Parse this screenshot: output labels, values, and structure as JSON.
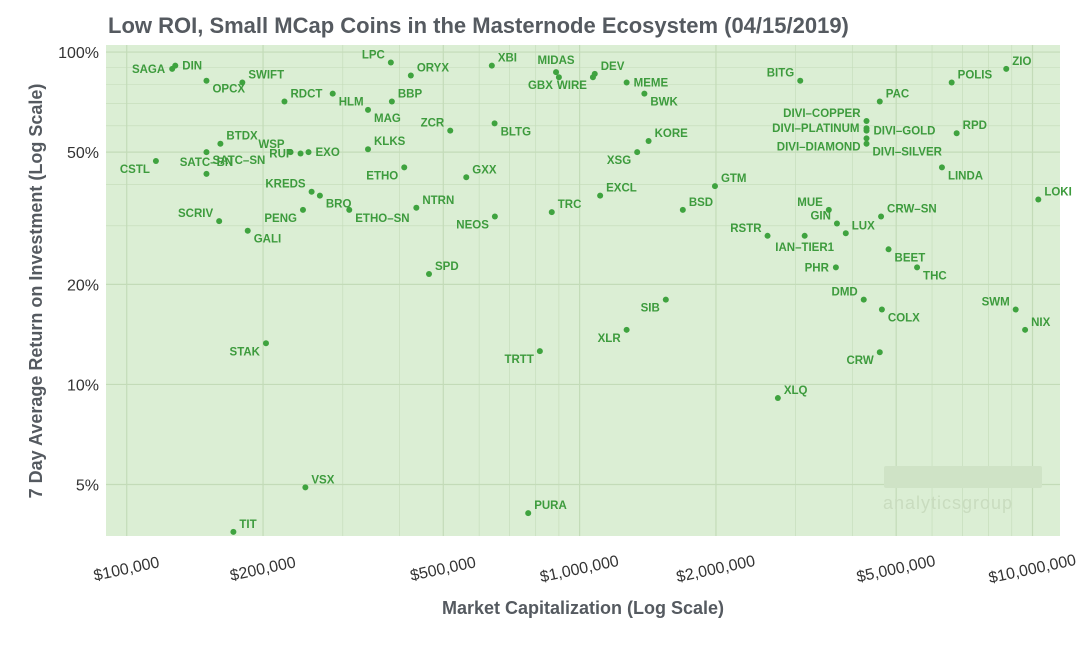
{
  "chart_data": {
    "type": "scatter",
    "title": "Low ROI, Small MCap Coins in the Masternode Ecosystem (04/15/2019)",
    "xlabel": "Market Capitalization (Log Scale)",
    "ylabel": "7 Day Average Return on Investment (Log Scale)",
    "x_scale": "log",
    "y_scale": "log",
    "xlim": [
      90000,
      11500000
    ],
    "ylim": [
      3.5,
      105
    ],
    "x_ticks": [
      {
        "value": 100000,
        "label": "$100,000"
      },
      {
        "value": 200000,
        "label": "$200,000"
      },
      {
        "value": 500000,
        "label": "$500,000"
      },
      {
        "value": 1000000,
        "label": "$1,000,000"
      },
      {
        "value": 2000000,
        "label": "$2,000,000"
      },
      {
        "value": 5000000,
        "label": "$5,000,000"
      },
      {
        "value": 10000000,
        "label": "$10,000,000"
      }
    ],
    "y_ticks": [
      {
        "value": 5,
        "label": "5%"
      },
      {
        "value": 10,
        "label": "10%"
      },
      {
        "value": 20,
        "label": "20%"
      },
      {
        "value": 50,
        "label": "50%"
      },
      {
        "value": 100,
        "label": "100%"
      }
    ],
    "x_minor_grid": [
      300000,
      400000,
      600000,
      700000,
      800000,
      900000,
      3000000,
      4000000,
      6000000,
      7000000,
      8000000,
      9000000
    ],
    "y_minor_grid": [
      30,
      40,
      60,
      70,
      80,
      90
    ],
    "grid": true,
    "colors": {
      "panel": "#dbeed4",
      "grid": "#c3dbb8",
      "point": "#3fa33f",
      "label": "#3d9b3d"
    },
    "points": [
      {
        "label": "DIN",
        "x": 128000,
        "y": 91,
        "pos": "r"
      },
      {
        "label": "SAGA",
        "x": 126000,
        "y": 89,
        "pos": "l"
      },
      {
        "label": "OPCX",
        "x": 150000,
        "y": 82,
        "pos": "br"
      },
      {
        "label": "SWIFT",
        "x": 180000,
        "y": 81,
        "pos": "tr"
      },
      {
        "label": "RDCT",
        "x": 223000,
        "y": 71,
        "pos": "tr"
      },
      {
        "label": "LPC",
        "x": 383000,
        "y": 93,
        "pos": "tl"
      },
      {
        "label": "ORYX",
        "x": 424000,
        "y": 85,
        "pos": "tr"
      },
      {
        "label": "BBP",
        "x": 385000,
        "y": 71,
        "pos": "tr"
      },
      {
        "label": "HLM",
        "x": 285000,
        "y": 75,
        "pos": "br"
      },
      {
        "label": "MAG",
        "x": 341000,
        "y": 67,
        "pos": "br"
      },
      {
        "label": "XBI",
        "x": 640000,
        "y": 91,
        "pos": "tr"
      },
      {
        "label": "MIDAS",
        "x": 887000,
        "y": 87,
        "pos": "t"
      },
      {
        "label": "GBX",
        "x": 900000,
        "y": 84,
        "pos": "bl"
      },
      {
        "label": "WIRE",
        "x": 1070000,
        "y": 84,
        "pos": "bl"
      },
      {
        "label": "DEV",
        "x": 1080000,
        "y": 86,
        "pos": "tr"
      },
      {
        "label": "MEME",
        "x": 1270000,
        "y": 81,
        "pos": "r"
      },
      {
        "label": "BWK",
        "x": 1390000,
        "y": 75,
        "pos": "br"
      },
      {
        "label": "BITG",
        "x": 3070000,
        "y": 82,
        "pos": "tl"
      },
      {
        "label": "ZIO",
        "x": 8750000,
        "y": 89,
        "pos": "tr"
      },
      {
        "label": "POLIS",
        "x": 6630000,
        "y": 81,
        "pos": "tr"
      },
      {
        "label": "PAC",
        "x": 4600000,
        "y": 71,
        "pos": "tr"
      },
      {
        "label": "DIVI–COPPER",
        "x": 4300000,
        "y": 62,
        "pos": "tl"
      },
      {
        "label": "DIVI–PLATINUM",
        "x": 4300000,
        "y": 59,
        "pos": "l"
      },
      {
        "label": "DIVI–GOLD",
        "x": 4300000,
        "y": 58,
        "pos": "r"
      },
      {
        "label": "DIVI–DIAMOND",
        "x": 4300000,
        "y": 55,
        "pos": "bl"
      },
      {
        "label": "DIVI–SILVER",
        "x": 4300000,
        "y": 53,
        "pos": "br"
      },
      {
        "label": "RPD",
        "x": 6800000,
        "y": 57,
        "pos": "tr"
      },
      {
        "label": "BTDX",
        "x": 161000,
        "y": 53,
        "pos": "tr"
      },
      {
        "label": "SATC–SN",
        "x": 150000,
        "y": 50,
        "pos": "br"
      },
      {
        "label": "CSTL",
        "x": 116000,
        "y": 47,
        "pos": "bl"
      },
      {
        "label": "WSP",
        "x": 230000,
        "y": 50,
        "pos": "tl"
      },
      {
        "label": "RUP",
        "x": 242000,
        "y": 49.5,
        "pos": "l"
      },
      {
        "label": "EXO",
        "x": 252000,
        "y": 50,
        "pos": "r"
      },
      {
        "label": "KLKS",
        "x": 341000,
        "y": 51,
        "pos": "tr"
      },
      {
        "label": "ZCR",
        "x": 518000,
        "y": 58,
        "pos": "tl"
      },
      {
        "label": "BLTG",
        "x": 649000,
        "y": 61,
        "pos": "br"
      },
      {
        "label": "KORE",
        "x": 1420000,
        "y": 54,
        "pos": "tr"
      },
      {
        "label": "XSG",
        "x": 1340000,
        "y": 50,
        "pos": "bl"
      },
      {
        "label": "SATC–BN",
        "x": 150000,
        "y": 43,
        "pos": "t"
      },
      {
        "label": "ETHO",
        "x": 410000,
        "y": 45,
        "pos": "bl"
      },
      {
        "label": "GXX",
        "x": 562000,
        "y": 42,
        "pos": "tr"
      },
      {
        "label": "KREDS",
        "x": 256000,
        "y": 38,
        "pos": "tl"
      },
      {
        "label": "BRO",
        "x": 267000,
        "y": 37,
        "pos": "br"
      },
      {
        "label": "EXCL",
        "x": 1110000,
        "y": 37,
        "pos": "tr"
      },
      {
        "label": "GTM",
        "x": 1990000,
        "y": 39.5,
        "pos": "tr"
      },
      {
        "label": "LINDA",
        "x": 6310000,
        "y": 45,
        "pos": "br"
      },
      {
        "label": "LOKI",
        "x": 10300000,
        "y": 36,
        "pos": "tr"
      },
      {
        "label": "BSD",
        "x": 1690000,
        "y": 33.5,
        "pos": "tr"
      },
      {
        "label": "SCRIV",
        "x": 160000,
        "y": 31,
        "pos": "tl"
      },
      {
        "label": "PENG",
        "x": 245000,
        "y": 33.5,
        "pos": "bl"
      },
      {
        "label": "ETHO–SN",
        "x": 310000,
        "y": 33.5,
        "pos": "br"
      },
      {
        "label": "NTRN",
        "x": 436000,
        "y": 34,
        "pos": "tr"
      },
      {
        "label": "NEOS",
        "x": 650000,
        "y": 32,
        "pos": "bl"
      },
      {
        "label": "TRC",
        "x": 868000,
        "y": 33,
        "pos": "tr"
      },
      {
        "label": "MUE",
        "x": 3550000,
        "y": 33.5,
        "pos": "tl"
      },
      {
        "label": "CRW–SN",
        "x": 4630000,
        "y": 32,
        "pos": "tr"
      },
      {
        "label": "GALI",
        "x": 185000,
        "y": 29,
        "pos": "br"
      },
      {
        "label": "GIN",
        "x": 3700000,
        "y": 30.5,
        "pos": "tl"
      },
      {
        "label": "LUX",
        "x": 3870000,
        "y": 28.5,
        "pos": "tr"
      },
      {
        "label": "RSTR",
        "x": 2600000,
        "y": 28,
        "pos": "tl"
      },
      {
        "label": "IAN–TIER1",
        "x": 3140000,
        "y": 28,
        "pos": "b"
      },
      {
        "label": "BEET",
        "x": 4810000,
        "y": 25.5,
        "pos": "br"
      },
      {
        "label": "PHR",
        "x": 3680000,
        "y": 22.5,
        "pos": "l"
      },
      {
        "label": "THC",
        "x": 5560000,
        "y": 22.5,
        "pos": "br"
      },
      {
        "label": "SPD",
        "x": 465000,
        "y": 21.5,
        "pos": "tr"
      },
      {
        "label": "DMD",
        "x": 4240000,
        "y": 18,
        "pos": "tl"
      },
      {
        "label": "SIB",
        "x": 1550000,
        "y": 18,
        "pos": "bl"
      },
      {
        "label": "COLX",
        "x": 4650000,
        "y": 16.8,
        "pos": "br"
      },
      {
        "label": "SWM",
        "x": 9180000,
        "y": 16.8,
        "pos": "tl"
      },
      {
        "label": "NIX",
        "x": 9630000,
        "y": 14.6,
        "pos": "tr"
      },
      {
        "label": "XLR",
        "x": 1270000,
        "y": 14.6,
        "pos": "bl"
      },
      {
        "label": "TRTT",
        "x": 817000,
        "y": 12.6,
        "pos": "bl"
      },
      {
        "label": "CRW",
        "x": 4600000,
        "y": 12.5,
        "pos": "bl"
      },
      {
        "label": "STAK",
        "x": 203000,
        "y": 13.3,
        "pos": "bl"
      },
      {
        "label": "XLQ",
        "x": 2740000,
        "y": 9.1,
        "pos": "tr"
      },
      {
        "label": "VSX",
        "x": 248000,
        "y": 4.9,
        "pos": "tr"
      },
      {
        "label": "PURA",
        "x": 770000,
        "y": 4.1,
        "pos": "tr"
      },
      {
        "label": "TIT",
        "x": 172000,
        "y": 3.6,
        "pos": "tr"
      }
    ]
  }
}
